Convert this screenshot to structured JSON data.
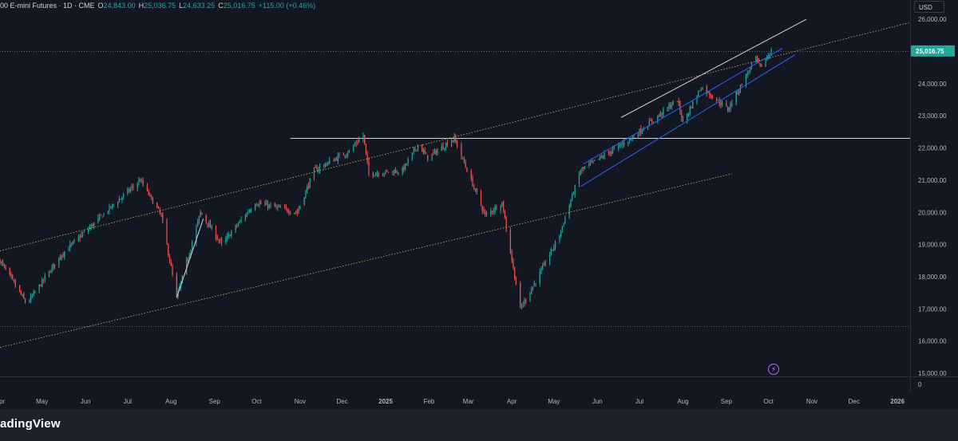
{
  "header": {
    "symbol": "00 E-mini Futures · 1D · CME",
    "open_label": "O",
    "open": "24,843.00",
    "high_label": "H",
    "high": "25,036.75",
    "low_label": "L",
    "low": "24,633.25",
    "close_label": "C",
    "close": "25,016.75",
    "change": "+115.00 (+0.46%)",
    "currency": "USD"
  },
  "footer": {
    "brand": "adingView"
  },
  "colors": {
    "background": "#131722",
    "up": "#26a69a",
    "down": "#ef5350",
    "price_tag": "#26a69a",
    "trend_white": "#d1d4dc",
    "trend_yellow": "#c9b458",
    "trend_blue": "#2962ff"
  },
  "icons": {
    "replay": "flash-icon"
  },
  "chart_data": {
    "type": "candlestick",
    "y_ticks": [
      "15,000.00",
      "16,000.00",
      "17,000.00",
      "18,000.00",
      "19,000.00",
      "20,000.00",
      "21,000.00",
      "22,000.00",
      "23,000.00",
      "24,000.00",
      "25,000.00",
      "26,000.00"
    ],
    "ylim": [
      14900,
      26600
    ],
    "zero_label": "0",
    "last_price": 25016.75,
    "last_price_label": "25,016.75",
    "x_ticks": [
      "Apr",
      "May",
      "Jun",
      "Jul",
      "Aug",
      "Sep",
      "Oct",
      "Nov",
      "Dec",
      "2025",
      "Feb",
      "Mar",
      "Apr",
      "May",
      "Jun",
      "Jul",
      "Aug",
      "Sep",
      "Oct",
      "Nov",
      "Dec",
      "2026"
    ],
    "x_range": [
      "2024-04-01",
      "2026-01-10"
    ],
    "x_last_candle": "2025-10-03",
    "horizontal_levels": [
      {
        "value": 25016.75,
        "style": "dotted"
      },
      {
        "value": 16450,
        "style": "dotted"
      },
      {
        "value": 22300,
        "style": "solid"
      }
    ],
    "anchors": [
      {
        "date": "2024-04-01",
        "close": 18500
      },
      {
        "date": "2024-04-20",
        "close": 17150
      },
      {
        "date": "2024-05-15",
        "close": 18700
      },
      {
        "date": "2024-06-20",
        "close": 20200
      },
      {
        "date": "2024-07-10",
        "close": 21000
      },
      {
        "date": "2024-07-25",
        "close": 19900
      },
      {
        "date": "2024-08-05",
        "close": 17350
      },
      {
        "date": "2024-08-22",
        "close": 20000
      },
      {
        "date": "2024-09-06",
        "close": 19000
      },
      {
        "date": "2024-09-30",
        "close": 20300
      },
      {
        "date": "2024-10-30",
        "close": 20000
      },
      {
        "date": "2024-11-11",
        "close": 21300
      },
      {
        "date": "2024-12-06",
        "close": 21900
      },
      {
        "date": "2024-12-16",
        "close": 22400
      },
      {
        "date": "2024-12-20",
        "close": 21200
      },
      {
        "date": "2025-01-13",
        "close": 21300
      },
      {
        "date": "2025-01-24",
        "close": 22100
      },
      {
        "date": "2025-01-31",
        "close": 21700
      },
      {
        "date": "2025-02-19",
        "close": 22300
      },
      {
        "date": "2025-03-13",
        "close": 19900
      },
      {
        "date": "2025-03-25",
        "close": 20300
      },
      {
        "date": "2025-04-07",
        "close": 17000
      },
      {
        "date": "2025-04-21",
        "close": 18100
      },
      {
        "date": "2025-05-05",
        "close": 19300
      },
      {
        "date": "2025-05-20",
        "close": 21300
      },
      {
        "date": "2025-06-25",
        "close": 22300
      },
      {
        "date": "2025-07-28",
        "close": 23500
      },
      {
        "date": "2025-08-01",
        "close": 22800
      },
      {
        "date": "2025-08-14",
        "close": 23900
      },
      {
        "date": "2025-09-02",
        "close": 23200
      },
      {
        "date": "2025-09-22",
        "close": 24800
      },
      {
        "date": "2025-09-25",
        "close": 24500
      },
      {
        "date": "2025-10-03",
        "close": 25016.75
      }
    ],
    "trend_lines": [
      {
        "color": "white",
        "from": [
          "2024-08-05",
          17350
        ],
        "to": [
          "2024-08-24",
          19800
        ]
      },
      {
        "color": "white",
        "from": [
          "2025-06-18",
          22950
        ],
        "to": [
          "2025-10-28",
          26000
        ]
      },
      {
        "color": "yellow",
        "from": [
          "2024-04-01",
          18800
        ],
        "to": [
          "2026-01-10",
          25900
        ]
      },
      {
        "color": "yellow",
        "from": [
          "2024-04-01",
          15800
        ],
        "to": [
          "2025-09-05",
          21200
        ]
      },
      {
        "color": "blue",
        "from": [
          "2025-05-22",
          21500
        ],
        "to": [
          "2025-10-11",
          25100
        ]
      },
      {
        "color": "blue",
        "from": [
          "2025-05-20",
          20800
        ],
        "to": [
          "2025-10-20",
          24900
        ]
      }
    ]
  }
}
